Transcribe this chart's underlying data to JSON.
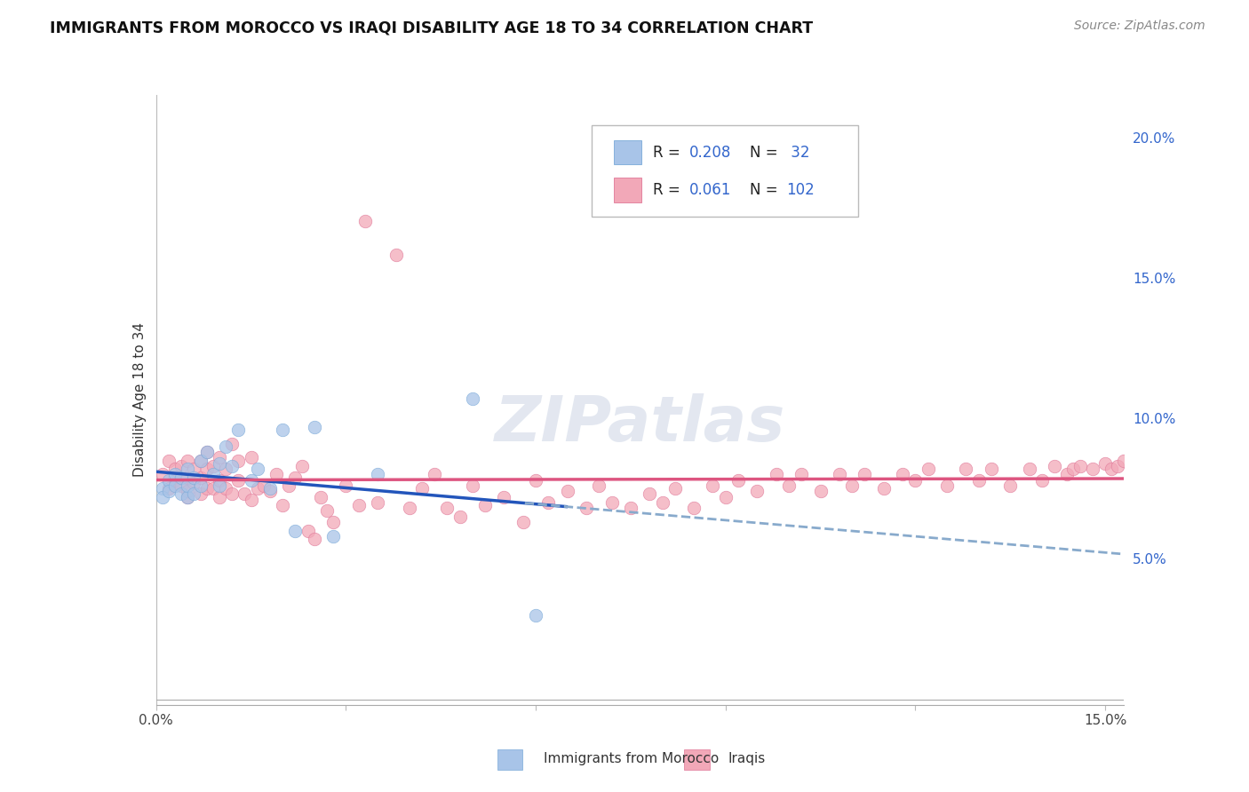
{
  "title": "IMMIGRANTS FROM MOROCCO VS IRAQI DISABILITY AGE 18 TO 34 CORRELATION CHART",
  "source": "Source: ZipAtlas.com",
  "ylabel": "Disability Age 18 to 34",
  "xlim": [
    0.0,
    0.153
  ],
  "ylim": [
    -0.002,
    0.215
  ],
  "x_ticks": [
    0.0,
    0.03,
    0.06,
    0.09,
    0.12,
    0.15
  ],
  "x_tick_labels": [
    "0.0%",
    "",
    "",
    "",
    "",
    "15.0%"
  ],
  "y_ticks": [
    0.05,
    0.1,
    0.15,
    0.2
  ],
  "y_tick_labels": [
    "5.0%",
    "10.0%",
    "15.0%",
    "20.0%"
  ],
  "R_morocco": "0.208",
  "N_morocco": " 32",
  "R_iraq": "0.061",
  "N_iraq": "102",
  "morocco_color": "#a8c4e8",
  "morocco_edge": "#7aaad8",
  "iraq_color": "#f2a8b8",
  "iraq_edge": "#e07898",
  "trendline_morocco_solid": "#2255bb",
  "trendline_morocco_dash": "#88aacc",
  "trendline_iraq": "#dd5580",
  "legend_label1": "Immigrants from Morocco",
  "legend_label2": "Iraqis",
  "morocco_x": [
    0.001,
    0.001,
    0.002,
    0.002,
    0.003,
    0.003,
    0.004,
    0.004,
    0.005,
    0.005,
    0.005,
    0.006,
    0.006,
    0.007,
    0.007,
    0.008,
    0.009,
    0.01,
    0.01,
    0.011,
    0.012,
    0.013,
    0.015,
    0.016,
    0.018,
    0.02,
    0.022,
    0.025,
    0.028,
    0.035,
    0.05,
    0.06
  ],
  "morocco_y": [
    0.075,
    0.072,
    0.078,
    0.074,
    0.076,
    0.08,
    0.073,
    0.079,
    0.072,
    0.076,
    0.082,
    0.073,
    0.079,
    0.076,
    0.085,
    0.088,
    0.08,
    0.076,
    0.084,
    0.09,
    0.083,
    0.096,
    0.078,
    0.082,
    0.075,
    0.096,
    0.06,
    0.097,
    0.058,
    0.08,
    0.107,
    0.03
  ],
  "iraq_x": [
    0.001,
    0.002,
    0.002,
    0.003,
    0.003,
    0.004,
    0.004,
    0.005,
    0.005,
    0.005,
    0.005,
    0.006,
    0.006,
    0.007,
    0.007,
    0.007,
    0.008,
    0.008,
    0.008,
    0.009,
    0.009,
    0.01,
    0.01,
    0.01,
    0.011,
    0.011,
    0.012,
    0.012,
    0.013,
    0.013,
    0.014,
    0.015,
    0.015,
    0.016,
    0.017,
    0.018,
    0.019,
    0.02,
    0.021,
    0.022,
    0.023,
    0.024,
    0.025,
    0.026,
    0.027,
    0.028,
    0.03,
    0.032,
    0.033,
    0.035,
    0.038,
    0.04,
    0.042,
    0.044,
    0.046,
    0.048,
    0.05,
    0.052,
    0.055,
    0.058,
    0.06,
    0.062,
    0.065,
    0.068,
    0.07,
    0.072,
    0.075,
    0.078,
    0.08,
    0.082,
    0.085,
    0.088,
    0.09,
    0.092,
    0.095,
    0.098,
    0.1,
    0.102,
    0.105,
    0.108,
    0.11,
    0.112,
    0.115,
    0.118,
    0.12,
    0.122,
    0.125,
    0.128,
    0.13,
    0.132,
    0.135,
    0.138,
    0.14,
    0.142,
    0.144,
    0.145,
    0.146,
    0.148,
    0.15,
    0.151,
    0.152,
    0.153
  ],
  "iraq_y": [
    0.08,
    0.085,
    0.075,
    0.082,
    0.078,
    0.076,
    0.083,
    0.072,
    0.079,
    0.085,
    0.074,
    0.082,
    0.077,
    0.073,
    0.079,
    0.085,
    0.075,
    0.082,
    0.088,
    0.075,
    0.083,
    0.072,
    0.078,
    0.086,
    0.075,
    0.082,
    0.073,
    0.091,
    0.078,
    0.085,
    0.073,
    0.071,
    0.086,
    0.075,
    0.076,
    0.074,
    0.08,
    0.069,
    0.076,
    0.079,
    0.083,
    0.06,
    0.057,
    0.072,
    0.067,
    0.063,
    0.076,
    0.069,
    0.173,
    0.07,
    0.165,
    0.068,
    0.075,
    0.08,
    0.068,
    0.065,
    0.076,
    0.069,
    0.072,
    0.063,
    0.078,
    0.07,
    0.074,
    0.068,
    0.076,
    0.07,
    0.068,
    0.073,
    0.07,
    0.075,
    0.068,
    0.076,
    0.072,
    0.078,
    0.074,
    0.08,
    0.076,
    0.08,
    0.074,
    0.08,
    0.076,
    0.08,
    0.075,
    0.08,
    0.078,
    0.082,
    0.076,
    0.082,
    0.078,
    0.082,
    0.076,
    0.082,
    0.078,
    0.083,
    0.08,
    0.082,
    0.083,
    0.082,
    0.084,
    0.082,
    0.083,
    0.085
  ]
}
